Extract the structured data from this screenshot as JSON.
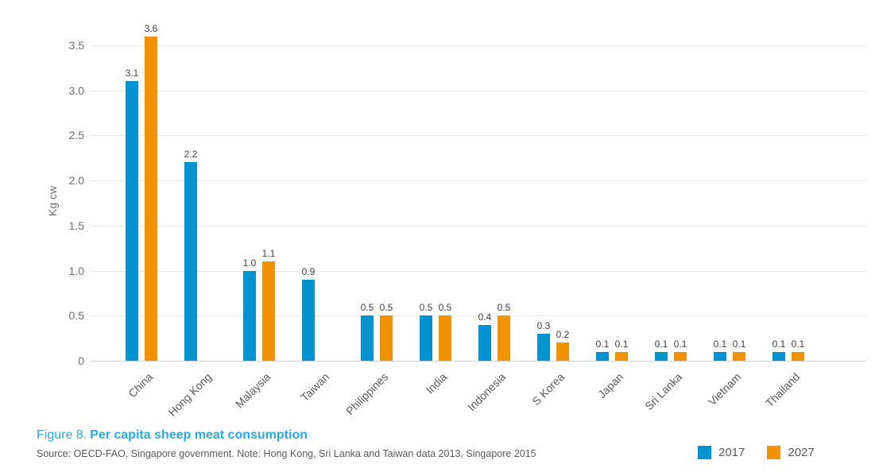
{
  "figure_caption": {
    "number": "Figure 8.",
    "title": "Per capita sheep meat consumption",
    "source_note": "Source: OECD-FAO, Singapore government. Note: Hong Kong, Sri Lanka and Taiwan data 2013, Singapore 2015"
  },
  "colors": {
    "bar_2017": "#0093D0",
    "bar_2027": "#F39200",
    "caption_title": "#29A9E0",
    "grid_line": "#E8E9EA",
    "axis_line": "#D1D3D4",
    "tick_label": "#6D6E71",
    "data_label": "#414042",
    "category_label": "#58595B"
  },
  "legend": {
    "items": [
      {
        "label": "2017",
        "color": "#0093D0"
      },
      {
        "label": "2027",
        "color": "#F39200"
      }
    ]
  },
  "chart_data": {
    "type": "bar",
    "title": "Figure 8. Per capita sheep meat consumption",
    "xlabel": "",
    "ylabel": "Kg cw",
    "units": "Kg cw",
    "ylim": [
      0,
      3.75
    ],
    "yticks": [
      0,
      0.5,
      1,
      1.5,
      2,
      2.5,
      3,
      3.5
    ],
    "grid": true,
    "data_labels": true,
    "legend_position": "bottom-right-below-chart",
    "categories": [
      "China",
      "Hong Kong",
      "Malaysia",
      "Taiwan",
      "Philippines",
      "India",
      "Indonesia",
      "S Korea",
      "Japan",
      "Sri Lanka",
      "Vietnam",
      "Thailand"
    ],
    "series": [
      {
        "name": "2017",
        "color": "#0093D0",
        "values": [
          3.1,
          2.2,
          1.0,
          0.9,
          0.5,
          0.5,
          0.4,
          0.3,
          0.1,
          0.1,
          0.1,
          0.1
        ]
      },
      {
        "name": "2027",
        "color": "#F39200",
        "values": [
          3.6,
          null,
          1.1,
          null,
          0.5,
          0.5,
          0.5,
          0.2,
          0.1,
          0.1,
          0.1,
          0.1
        ]
      }
    ]
  }
}
